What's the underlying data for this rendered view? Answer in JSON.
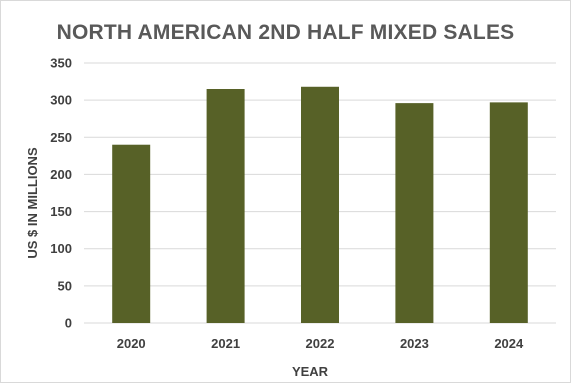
{
  "chart_data": {
    "type": "bar",
    "title": "NORTH AMERICAN 2ND HALF MIXED SALES",
    "xlabel": "YEAR",
    "ylabel": "US $ IN MILLIONS",
    "categories": [
      "2020",
      "2021",
      "2022",
      "2023",
      "2024"
    ],
    "values": [
      240,
      315,
      318,
      296,
      297
    ],
    "ylim": [
      0,
      350
    ],
    "yticks": [
      0,
      50,
      100,
      150,
      200,
      250,
      300,
      350
    ],
    "grid": true,
    "legend": "none",
    "bar_color": "#576127",
    "grid_color": "#d9d9d9"
  }
}
